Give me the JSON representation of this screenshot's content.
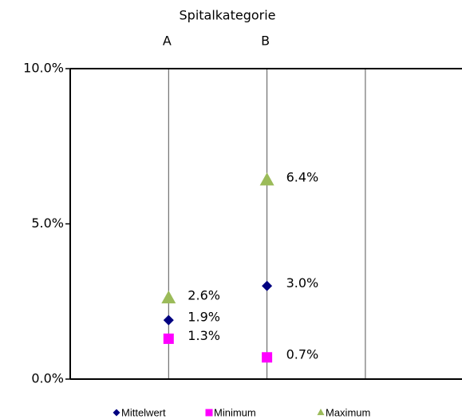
{
  "chart_data": {
    "type": "scatter",
    "title": "Spitalkategorie",
    "categories": [
      "A",
      "B",
      null
    ],
    "series": [
      {
        "name": "Mittelwert",
        "color": "#000080",
        "marker": "diamond",
        "values": [
          1.9,
          3.0,
          null
        ],
        "value_labels": [
          "1.9%",
          "3.0%",
          null
        ]
      },
      {
        "name": "Minimum",
        "color": "#ff00ff",
        "marker": "square",
        "values": [
          1.3,
          0.7,
          null
        ],
        "value_labels": [
          "1.3%",
          "0.7%",
          null
        ]
      },
      {
        "name": "Maximum",
        "color": "#9bbb59",
        "marker": "triangle",
        "values": [
          2.6,
          6.4,
          null
        ],
        "value_labels": [
          "2.6%",
          "6.4%",
          null
        ]
      }
    ],
    "ylim": [
      0,
      10
    ],
    "yticks": [
      {
        "value": 0,
        "label": "0.0%"
      },
      {
        "value": 5,
        "label": "5.0%"
      },
      {
        "value": 10,
        "label": "10.0%"
      }
    ],
    "legend": "bottom"
  }
}
